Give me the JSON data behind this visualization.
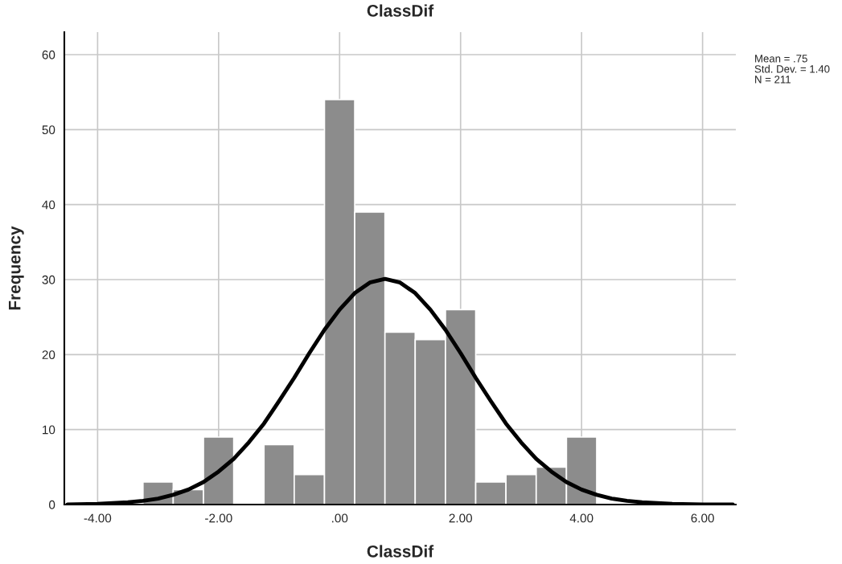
{
  "chart_data": {
    "type": "histogram",
    "title": "ClassDif",
    "xlabel": "ClassDif",
    "ylabel": "Frequency",
    "bins": [
      -3.25,
      -2.75,
      -2.25,
      -1.75,
      -1.25,
      -0.75,
      -0.25,
      0.25,
      0.75,
      1.25,
      1.75,
      2.25,
      2.75,
      3.25,
      3.75,
      4.25
    ],
    "values": [
      3,
      2,
      9,
      0,
      8,
      4,
      54,
      39,
      23,
      22,
      26,
      3,
      4,
      5,
      9
    ],
    "color": "#8c8c8c",
    "series": [
      {
        "type": "line",
        "color": "#000000",
        "x": [
          -4.5,
          -4,
          -3.5,
          -3.25,
          -3,
          -2.75,
          -2.5,
          -2.25,
          -2,
          -1.75,
          -1.5,
          -1.25,
          -1,
          -0.75,
          -0.5,
          -0.25,
          0,
          0.25,
          0.5,
          0.75,
          1,
          1.25,
          1.5,
          1.75,
          2,
          2.25,
          2.5,
          2.75,
          3,
          3.25,
          3.5,
          3.75,
          4,
          4.25,
          4.5,
          4.75,
          5,
          5.5,
          6,
          6.5
        ],
        "values": [
          0.0,
          0.1,
          0.3,
          0.5,
          0.8,
          1.3,
          2.0,
          3.0,
          4.4,
          6.1,
          8.3,
          10.8,
          13.8,
          16.9,
          20.2,
          23.3,
          26.0,
          28.2,
          29.6,
          30.1,
          29.6,
          28.2,
          26.0,
          23.3,
          20.2,
          16.9,
          13.8,
          10.8,
          8.3,
          6.1,
          4.4,
          3.0,
          2.0,
          1.3,
          0.8,
          0.5,
          0.3,
          0.1,
          0.0,
          0.0
        ]
      }
    ],
    "xlim": [
      -4.55,
      6.55
    ],
    "xticks": [
      {
        "value": -4,
        "label": "-4.00"
      },
      {
        "value": -2,
        "label": "-2.00"
      },
      {
        "value": 0,
        "label": ".00"
      },
      {
        "value": 2,
        "label": "2.00"
      },
      {
        "value": 4,
        "label": "4.00"
      },
      {
        "value": 6,
        "label": "6.00"
      }
    ],
    "ylim": [
      0,
      63
    ],
    "yticks": [
      0,
      10,
      20,
      30,
      40,
      50,
      60
    ],
    "grid": true,
    "annotations": [
      "Mean = .75",
      "Std. Dev. = 1.40",
      "N = 211"
    ]
  }
}
